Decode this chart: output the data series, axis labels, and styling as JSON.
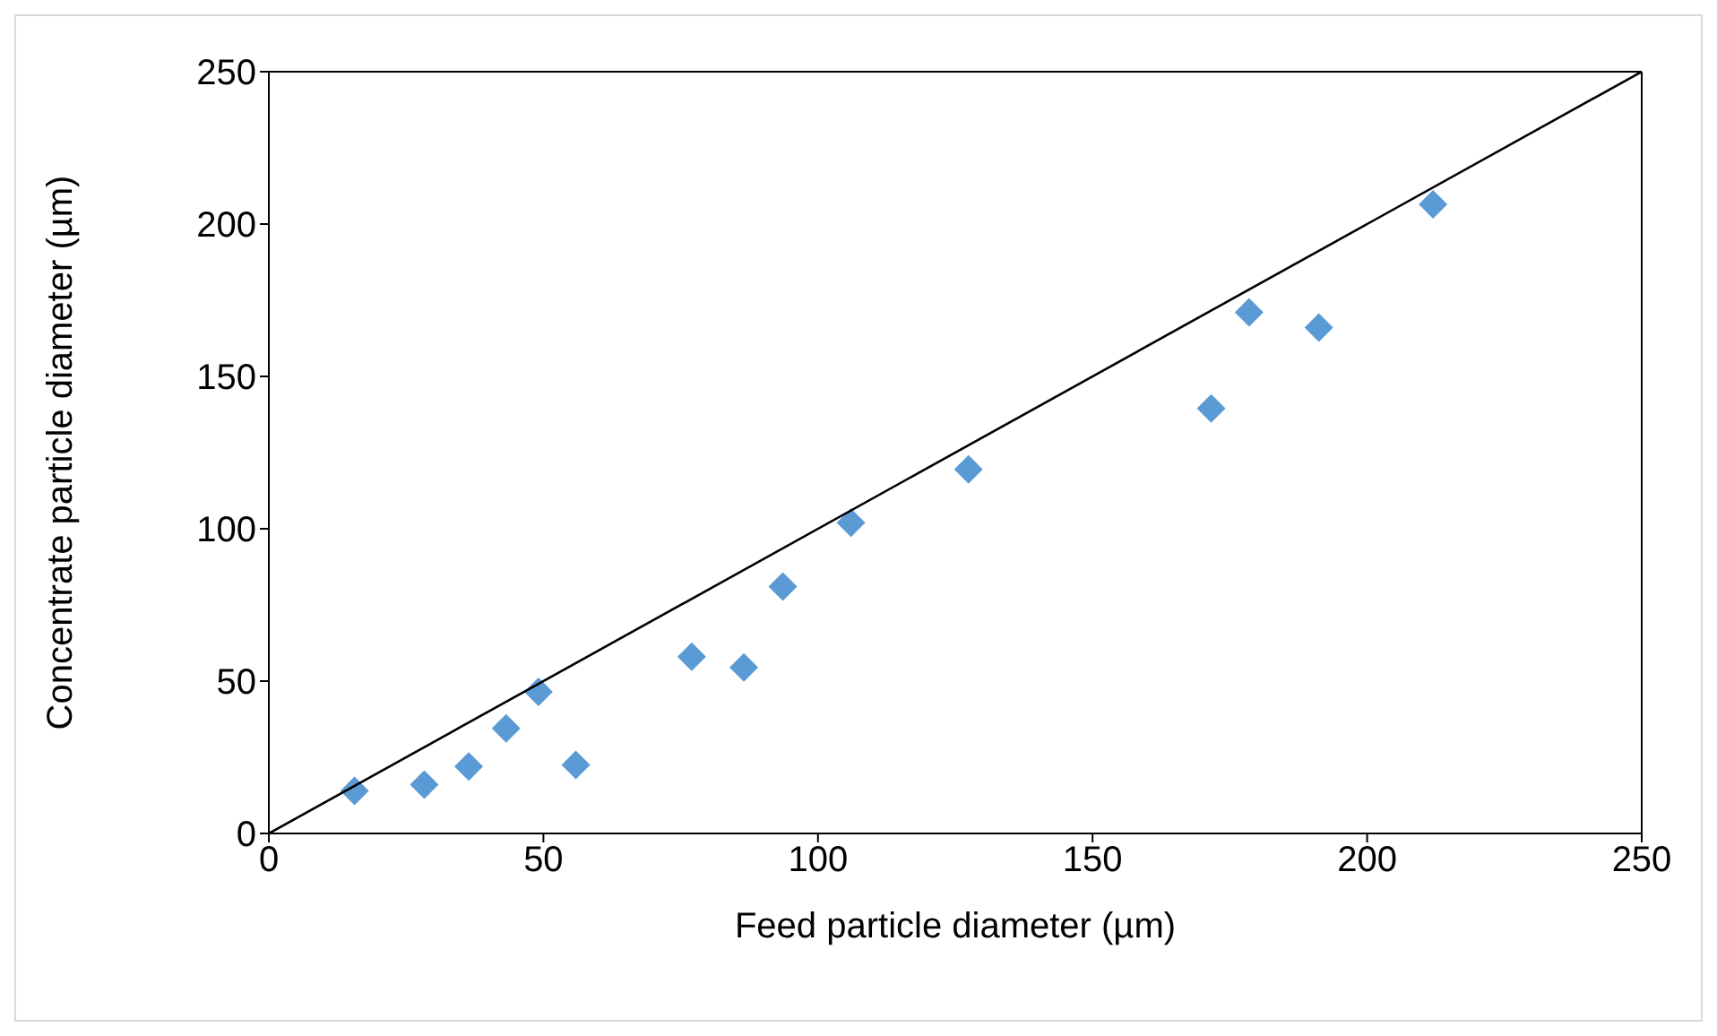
{
  "chart_data": {
    "type": "scatter",
    "xlabel": "Feed particle diameter (µm)",
    "ylabel": "Concentrate particle diameter (µm)",
    "xlim": [
      0,
      250
    ],
    "ylim": [
      0,
      250
    ],
    "xticks": [
      0,
      50,
      100,
      150,
      200,
      250
    ],
    "yticks": [
      0,
      50,
      100,
      150,
      200,
      250
    ],
    "series": [
      {
        "marker": "diamond",
        "color": "#5b9bd5",
        "x": [
          15.6,
          28.3,
          36.4,
          43.2,
          49.1,
          55.9,
          77,
          86.5,
          93.6,
          106,
          127.4,
          171.6,
          178.5,
          191.2,
          212
        ],
        "values": [
          14,
          16,
          22,
          34.5,
          46.5,
          22.5,
          58,
          54.5,
          81,
          102,
          119.5,
          139.5,
          171,
          166,
          206.5
        ]
      },
      {
        "type": "line",
        "marker": "none",
        "line_style": "solid",
        "color": "#000000",
        "x": [
          0,
          250
        ],
        "values": [
          0,
          250
        ]
      }
    ]
  }
}
